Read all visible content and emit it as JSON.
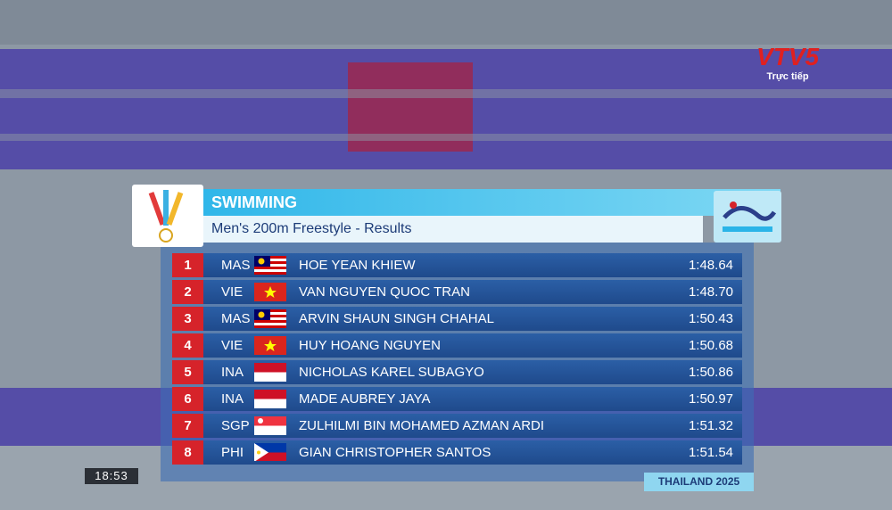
{
  "broadcaster": {
    "logo": "VTV5",
    "status": "Trực tiếp"
  },
  "header": {
    "sport": "SWIMMING",
    "event": "Men's 200m Freestyle - Results"
  },
  "table": {
    "rows": [
      [
        "1",
        "MAS",
        "HOE YEAN KHIEW",
        "1:48.64"
      ],
      [
        "2",
        "VIE",
        "VAN NGUYEN QUOC TRAN",
        "1:48.70"
      ],
      [
        "3",
        "MAS",
        "ARVIN SHAUN SINGH CHAHAL",
        "1:50.43"
      ],
      [
        "4",
        "VIE",
        "HUY HOANG NGUYEN",
        "1:50.68"
      ],
      [
        "5",
        "INA",
        "NICHOLAS KAREL SUBAGYO",
        "1:50.86"
      ],
      [
        "6",
        "INA",
        "MADE AUBREY JAYA",
        "1:50.97"
      ],
      [
        "7",
        "SGP",
        "ZULHILMI BIN MOHAMED AZMAN ARDI",
        "1:51.32"
      ],
      [
        "8",
        "PHI",
        "GIAN CHRISTOPHER SANTOS",
        "1:51.54"
      ]
    ]
  },
  "clock": "18:53",
  "footer": "THAILAND 2025"
}
